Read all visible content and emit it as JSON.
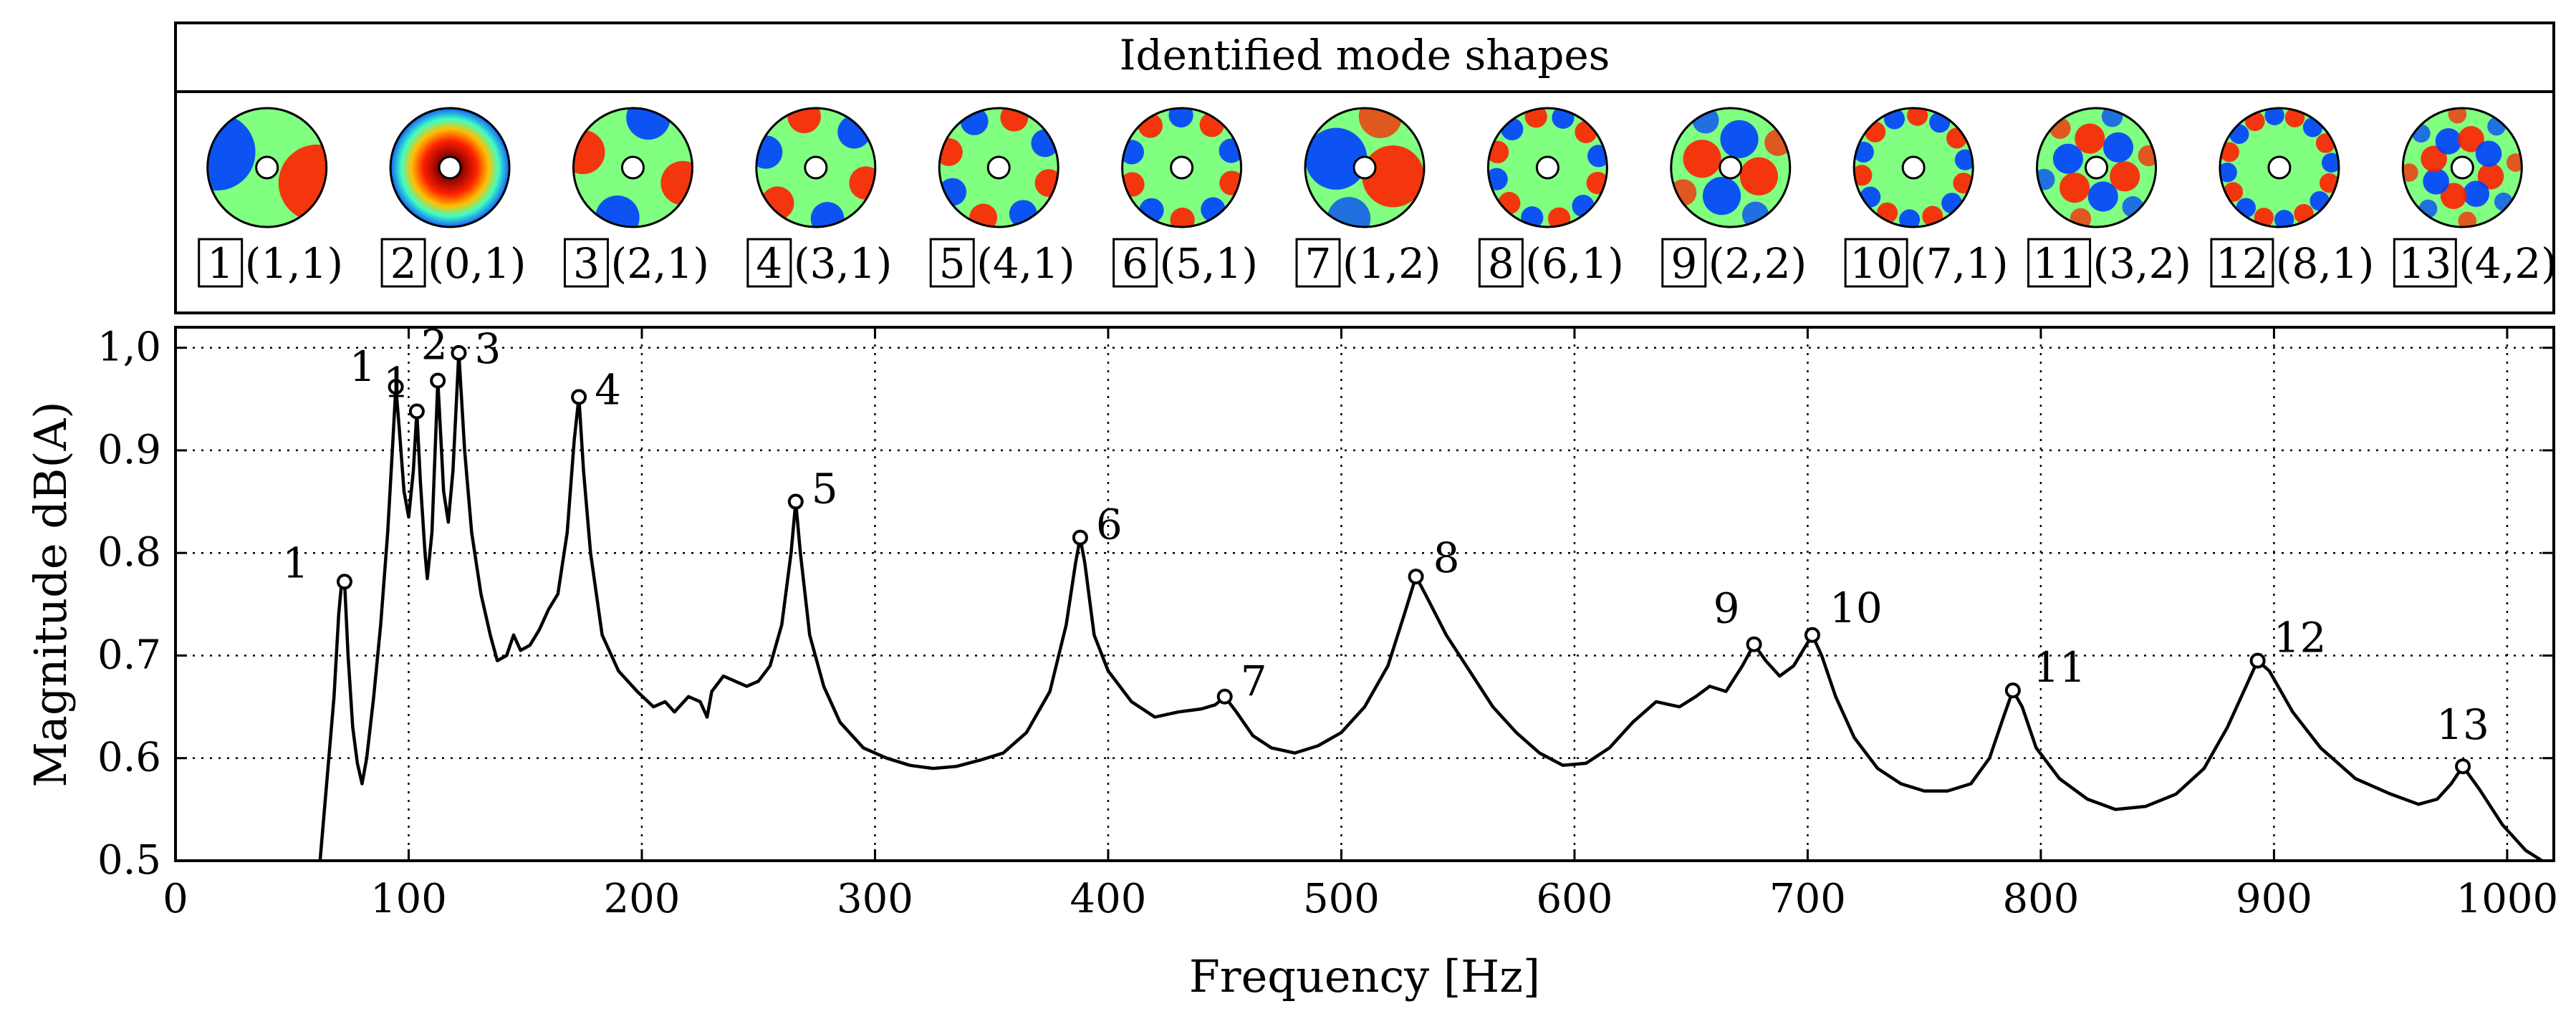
{
  "chart_data": {
    "type": "line",
    "panel_title": "Identified mode shapes",
    "xlabel": "Frequency [Hz]",
    "ylabel": "Magnitude dB(A)",
    "xlim": [
      0,
      1020
    ],
    "ylim": [
      0.5,
      1.02
    ],
    "xticks": [
      0,
      100,
      200,
      300,
      400,
      500,
      600,
      700,
      800,
      900,
      1000
    ],
    "xtick_labels": [
      "0",
      "100",
      "200",
      "300",
      "400",
      "500",
      "600",
      "700",
      "800",
      "900",
      "1000"
    ],
    "yticks": [
      0.5,
      0.6,
      0.7,
      0.8,
      0.9,
      1.0
    ],
    "ytick_labels": [
      "0.5",
      "0.6",
      "0.7",
      "0.8",
      "0.9",
      "1,0"
    ],
    "grid": true,
    "series": [
      {
        "name": "magnitude",
        "points": [
          [
            62,
            0.5
          ],
          [
            65,
            0.58
          ],
          [
            68,
            0.66
          ],
          [
            70,
            0.74
          ],
          [
            71,
            0.765
          ],
          [
            72.5,
            0.772
          ],
          [
            74,
            0.7
          ],
          [
            76,
            0.63
          ],
          [
            78,
            0.595
          ],
          [
            80,
            0.575
          ],
          [
            82,
            0.6
          ],
          [
            85,
            0.66
          ],
          [
            88,
            0.73
          ],
          [
            91,
            0.82
          ],
          [
            93,
            0.9
          ],
          [
            94.5,
            0.962
          ],
          [
            96,
            0.92
          ],
          [
            98,
            0.86
          ],
          [
            100,
            0.835
          ],
          [
            102,
            0.88
          ],
          [
            103.5,
            0.938
          ],
          [
            105,
            0.87
          ],
          [
            107,
            0.8
          ],
          [
            108,
            0.775
          ],
          [
            110,
            0.82
          ],
          [
            112.5,
            0.968
          ],
          [
            115,
            0.86
          ],
          [
            117,
            0.83
          ],
          [
            119,
            0.88
          ],
          [
            121.5,
            0.995
          ],
          [
            124,
            0.9
          ],
          [
            127,
            0.82
          ],
          [
            131,
            0.76
          ],
          [
            135,
            0.72
          ],
          [
            138,
            0.695
          ],
          [
            142,
            0.7
          ],
          [
            145,
            0.72
          ],
          [
            148,
            0.705
          ],
          [
            152,
            0.71
          ],
          [
            156,
            0.725
          ],
          [
            160,
            0.745
          ],
          [
            164,
            0.76
          ],
          [
            168,
            0.82
          ],
          [
            171,
            0.91
          ],
          [
            173,
            0.952
          ],
          [
            175,
            0.88
          ],
          [
            178,
            0.8
          ],
          [
            183,
            0.72
          ],
          [
            190,
            0.685
          ],
          [
            198,
            0.665
          ],
          [
            205,
            0.65
          ],
          [
            210,
            0.655
          ],
          [
            214,
            0.645
          ],
          [
            220,
            0.66
          ],
          [
            225,
            0.655
          ],
          [
            228,
            0.64
          ],
          [
            230,
            0.665
          ],
          [
            235,
            0.68
          ],
          [
            240,
            0.675
          ],
          [
            245,
            0.67
          ],
          [
            250,
            0.675
          ],
          [
            255,
            0.69
          ],
          [
            260,
            0.73
          ],
          [
            264,
            0.8
          ],
          [
            266,
            0.85
          ],
          [
            268,
            0.8
          ],
          [
            272,
            0.72
          ],
          [
            278,
            0.67
          ],
          [
            285,
            0.635
          ],
          [
            295,
            0.61
          ],
          [
            305,
            0.6
          ],
          [
            315,
            0.593
          ],
          [
            325,
            0.59
          ],
          [
            335,
            0.592
          ],
          [
            345,
            0.598
          ],
          [
            355,
            0.605
          ],
          [
            365,
            0.625
          ],
          [
            375,
            0.665
          ],
          [
            382,
            0.73
          ],
          [
            386,
            0.79
          ],
          [
            388,
            0.815
          ],
          [
            390,
            0.79
          ],
          [
            394,
            0.72
          ],
          [
            400,
            0.685
          ],
          [
            410,
            0.655
          ],
          [
            420,
            0.64
          ],
          [
            430,
            0.645
          ],
          [
            440,
            0.648
          ],
          [
            446,
            0.652
          ],
          [
            450,
            0.66
          ],
          [
            455,
            0.645
          ],
          [
            462,
            0.622
          ],
          [
            470,
            0.61
          ],
          [
            480,
            0.605
          ],
          [
            490,
            0.612
          ],
          [
            500,
            0.625
          ],
          [
            510,
            0.65
          ],
          [
            520,
            0.69
          ],
          [
            527,
            0.74
          ],
          [
            532,
            0.777
          ],
          [
            536,
            0.76
          ],
          [
            545,
            0.72
          ],
          [
            555,
            0.685
          ],
          [
            565,
            0.65
          ],
          [
            575,
            0.625
          ],
          [
            585,
            0.605
          ],
          [
            595,
            0.593
          ],
          [
            605,
            0.595
          ],
          [
            615,
            0.61
          ],
          [
            625,
            0.635
          ],
          [
            635,
            0.655
          ],
          [
            645,
            0.65
          ],
          [
            652,
            0.66
          ],
          [
            658,
            0.67
          ],
          [
            665,
            0.665
          ],
          [
            672,
            0.69
          ],
          [
            677,
            0.711
          ],
          [
            682,
            0.695
          ],
          [
            688,
            0.68
          ],
          [
            694,
            0.69
          ],
          [
            698,
            0.705
          ],
          [
            702,
            0.72
          ],
          [
            706,
            0.7
          ],
          [
            712,
            0.66
          ],
          [
            720,
            0.62
          ],
          [
            730,
            0.59
          ],
          [
            740,
            0.575
          ],
          [
            750,
            0.568
          ],
          [
            760,
            0.568
          ],
          [
            770,
            0.575
          ],
          [
            778,
            0.6
          ],
          [
            784,
            0.64
          ],
          [
            788,
            0.666
          ],
          [
            792,
            0.65
          ],
          [
            798,
            0.61
          ],
          [
            808,
            0.58
          ],
          [
            820,
            0.56
          ],
          [
            832,
            0.55
          ],
          [
            845,
            0.553
          ],
          [
            858,
            0.565
          ],
          [
            870,
            0.59
          ],
          [
            880,
            0.63
          ],
          [
            888,
            0.67
          ],
          [
            893,
            0.695
          ],
          [
            898,
            0.685
          ],
          [
            908,
            0.645
          ],
          [
            920,
            0.61
          ],
          [
            935,
            0.58
          ],
          [
            950,
            0.565
          ],
          [
            962,
            0.555
          ],
          [
            970,
            0.56
          ],
          [
            976,
            0.575
          ],
          [
            981,
            0.592
          ],
          [
            988,
            0.57
          ],
          [
            998,
            0.535
          ],
          [
            1008,
            0.51
          ],
          [
            1015,
            0.5
          ]
        ]
      }
    ],
    "peaks": [
      {
        "label": "1",
        "x": 72.5,
        "y": 0.772
      },
      {
        "label": "1",
        "x": 94.5,
        "y": 0.962
      },
      {
        "label": "1",
        "x": 103.5,
        "y": 0.938
      },
      {
        "label": "2",
        "x": 112.5,
        "y": 0.968
      },
      {
        "label": "3",
        "x": 121.5,
        "y": 0.995
      },
      {
        "label": "4",
        "x": 173,
        "y": 0.952
      },
      {
        "label": "5",
        "x": 266,
        "y": 0.85
      },
      {
        "label": "6",
        "x": 388,
        "y": 0.815
      },
      {
        "label": "7",
        "x": 450,
        "y": 0.66
      },
      {
        "label": "8",
        "x": 532,
        "y": 0.777
      },
      {
        "label": "9",
        "x": 677,
        "y": 0.711
      },
      {
        "label": "10",
        "x": 702,
        "y": 0.72
      },
      {
        "label": "11",
        "x": 788,
        "y": 0.666
      },
      {
        "label": "12",
        "x": 893,
        "y": 0.695
      },
      {
        "label": "13",
        "x": 981,
        "y": 0.592
      }
    ],
    "mode_shapes": [
      {
        "number": "1",
        "label": "(1,1)",
        "n": 1,
        "m": 1
      },
      {
        "number": "2",
        "label": "(0,1)",
        "n": 0,
        "m": 1
      },
      {
        "number": "3",
        "label": "(2,1)",
        "n": 2,
        "m": 1
      },
      {
        "number": "4",
        "label": "(3,1)",
        "n": 3,
        "m": 1
      },
      {
        "number": "5",
        "label": "(4,1)",
        "n": 4,
        "m": 1
      },
      {
        "number": "6",
        "label": "(5,1)",
        "n": 5,
        "m": 1
      },
      {
        "number": "7",
        "label": "(1,2)",
        "n": 1,
        "m": 2
      },
      {
        "number": "8",
        "label": "(6,1)",
        "n": 6,
        "m": 1
      },
      {
        "number": "9",
        "label": "(2,2)",
        "n": 2,
        "m": 2
      },
      {
        "number": "10",
        "label": "(7,1)",
        "n": 7,
        "m": 1
      },
      {
        "number": "11",
        "label": "(3,2)",
        "n": 3,
        "m": 2
      },
      {
        "number": "12",
        "label": "(8,1)",
        "n": 8,
        "m": 1
      },
      {
        "number": "13",
        "label": "(4,2)",
        "n": 4,
        "m": 2
      }
    ],
    "colors": {
      "line": "#000000",
      "grid": "#000000",
      "background": "#ffffff"
    }
  }
}
